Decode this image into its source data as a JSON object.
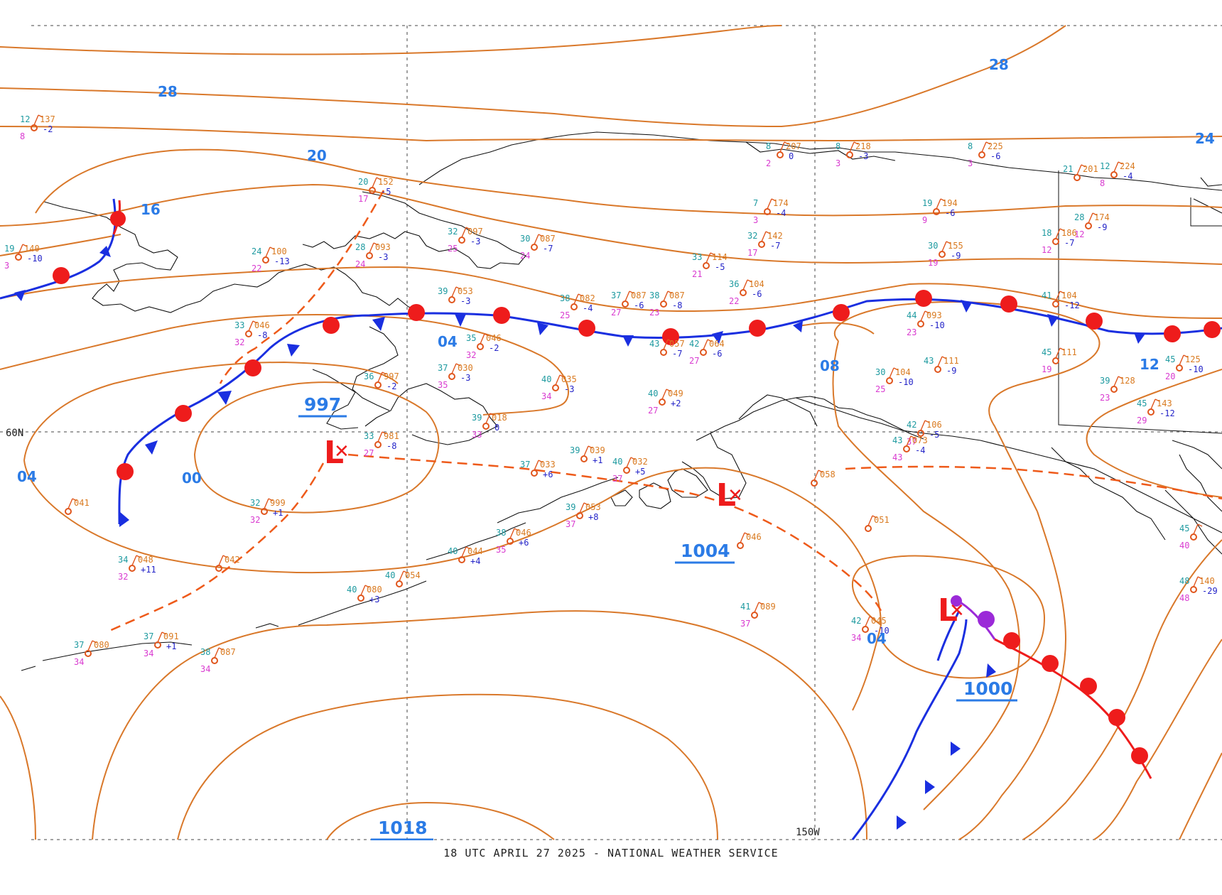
{
  "footer": "18 UTC APRIL 27 2025 - NATIONAL WEATHER SERVICE",
  "grid_labels": {
    "lat": "60N",
    "lon": "150W"
  },
  "colors": {
    "isobar": "#d9782a",
    "label": "#2b7be6",
    "low": "#ee1c1c",
    "cold_front": "#1a2fe0",
    "warm_front": "#ee1c1c",
    "occluded": "#9b2ad8",
    "trough": "#ee5a1a"
  },
  "pressure_centers": {
    "low_west": {
      "symbol": "L",
      "pressure": "997"
    },
    "low_central": {
      "symbol": "L",
      "pressure": "1004"
    },
    "low_southeast": {
      "symbol": "L",
      "pressure": "1000"
    },
    "high_south": {
      "pressure": "1018"
    }
  },
  "isobar_labels": [
    "28",
    "20",
    "16",
    "04",
    "00",
    "04",
    "08",
    "12",
    "28",
    "24",
    "04"
  ],
  "stations": [
    {
      "t": "12",
      "dp": "8",
      "p": "137",
      "c": "-2"
    },
    {
      "t": "19",
      "dp": "3",
      "p": "140",
      "c": "-10"
    },
    {
      "t": "20",
      "dp": "17",
      "p": "152",
      "c": "-5"
    },
    {
      "t": "24",
      "dp": "22",
      "p": "100",
      "c": "-13"
    },
    {
      "t": "28",
      "dp": "24",
      "p": "093",
      "c": "-3"
    },
    {
      "t": "32",
      "dp": "25",
      "p": "097",
      "c": "-3"
    },
    {
      "t": "30",
      "dp": "24",
      "p": "087",
      "c": "-7"
    },
    {
      "t": "33",
      "dp": "32",
      "p": "046",
      "c": "-8"
    },
    {
      "t": "39",
      "dp": "",
      "p": "053",
      "c": "-3"
    },
    {
      "t": "38",
      "dp": "25",
      "p": "082",
      "c": "-4"
    },
    {
      "t": "37",
      "dp": "27",
      "p": "087",
      "c": "-6"
    },
    {
      "t": "38",
      "dp": "23",
      "p": "087",
      "c": "-8"
    },
    {
      "t": "33",
      "dp": "21",
      "p": "114",
      "c": "-5"
    },
    {
      "t": "36",
      "dp": "22",
      "p": "104",
      "c": "-6"
    },
    {
      "t": "32",
      "dp": "17",
      "p": "142",
      "c": "-7"
    },
    {
      "t": "7",
      "dp": "3",
      "p": "174",
      "c": "-4"
    },
    {
      "t": "8",
      "dp": "2",
      "p": "207",
      "c": "0"
    },
    {
      "t": "8",
      "dp": "3",
      "p": "218",
      "c": "-3"
    },
    {
      "t": "8",
      "dp": "3",
      "p": "225",
      "c": "-6"
    },
    {
      "t": "19",
      "dp": "9",
      "p": "194",
      "c": "-6"
    },
    {
      "t": "30",
      "dp": "19",
      "p": "155",
      "c": "-9"
    },
    {
      "t": "21",
      "dp": "",
      "p": "201",
      "c": ""
    },
    {
      "t": "12",
      "dp": "8",
      "p": "224",
      "c": "-4"
    },
    {
      "t": "28",
      "dp": "12",
      "p": "174",
      "c": "-9"
    },
    {
      "t": "18",
      "dp": "12",
      "p": "186",
      "c": "-7"
    },
    {
      "t": "41",
      "dp": "",
      "p": "104",
      "c": "-12"
    },
    {
      "t": "44",
      "dp": "23",
      "p": "093",
      "c": "-10"
    },
    {
      "t": "45",
      "dp": "19",
      "p": "111",
      "c": ""
    },
    {
      "t": "45",
      "dp": "20",
      "p": "125",
      "c": "-10"
    },
    {
      "t": "39",
      "dp": "23",
      "p": "128",
      "c": ""
    },
    {
      "t": "45",
      "dp": "29",
      "p": "143",
      "c": "-12"
    },
    {
      "t": "43",
      "dp": "",
      "p": "111",
      "c": "-9"
    },
    {
      "t": "30",
      "dp": "25",
      "p": "104",
      "c": "-10"
    },
    {
      "t": "42",
      "dp": "37",
      "p": "106",
      "c": "-5"
    },
    {
      "t": "43",
      "dp": "",
      "p": "057",
      "c": "-7"
    },
    {
      "t": "42",
      "dp": "27",
      "p": "064",
      "c": "-6"
    },
    {
      "t": "40",
      "dp": "27",
      "p": "049",
      "c": "+2"
    },
    {
      "t": "40",
      "dp": "34",
      "p": "035",
      "c": "-3"
    },
    {
      "t": "37",
      "dp": "35",
      "p": "030",
      "c": "-3"
    },
    {
      "t": "35",
      "dp": "32",
      "p": "046",
      "c": "-2"
    },
    {
      "t": "36",
      "dp": "",
      "p": "997",
      "c": "-2"
    },
    {
      "t": "33",
      "dp": "27",
      "p": "981",
      "c": "-8"
    },
    {
      "t": "39",
      "dp": "33",
      "p": "018",
      "c": "0"
    },
    {
      "t": "37",
      "dp": "",
      "p": "033",
      "c": "+6"
    },
    {
      "t": "39",
      "dp": "",
      "p": "039",
      "c": "+1"
    },
    {
      "t": "40",
      "dp": "37",
      "p": "032",
      "c": "+5"
    },
    {
      "t": "39",
      "dp": "37",
      "p": "053",
      "c": "+8"
    },
    {
      "t": "38",
      "dp": "35",
      "p": "046",
      "c": "+6"
    },
    {
      "t": "40",
      "dp": "",
      "p": "044",
      "c": "+4"
    },
    {
      "t": "40",
      "dp": "",
      "p": "054",
      "c": ""
    },
    {
      "t": "40",
      "dp": "",
      "p": "080",
      "c": "+3"
    },
    {
      "t": "32",
      "dp": "32",
      "p": "999",
      "c": "+1"
    },
    {
      "t": "34",
      "dp": "32",
      "p": "048",
      "c": "+11"
    },
    {
      "t": "37",
      "dp": "34",
      "p": "080",
      "c": ""
    },
    {
      "t": "37",
      "dp": "34",
      "p": "091",
      "c": "+1"
    },
    {
      "t": "38",
      "dp": "34",
      "p": "087",
      "c": ""
    },
    {
      "t": "",
      "dp": "",
      "p": "041",
      "c": ""
    },
    {
      "t": "",
      "dp": "",
      "p": "042",
      "c": ""
    },
    {
      "t": "",
      "dp": "",
      "p": "058",
      "c": ""
    },
    {
      "t": "",
      "dp": "",
      "p": "051",
      "c": ""
    },
    {
      "t": "",
      "dp": "",
      "p": "046",
      "c": ""
    },
    {
      "t": "41",
      "dp": "37",
      "p": "089",
      "c": ""
    },
    {
      "t": "42",
      "dp": "34",
      "p": "045",
      "c": "-10"
    },
    {
      "t": "43",
      "dp": "43",
      "p": "073",
      "c": "-4"
    },
    {
      "t": "48",
      "dp": "48",
      "p": "140",
      "c": "-29"
    },
    {
      "t": "45",
      "dp": "40",
      "p": "",
      "c": ""
    }
  ]
}
